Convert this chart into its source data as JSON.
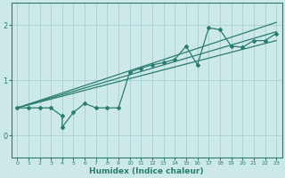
{
  "xlabel": "Humidex (Indice chaleur)",
  "ylabel": "",
  "bg_color": "#cce8e8",
  "line_color": "#2a7d6e",
  "grid_color": "#add4d4",
  "xlim": [
    -0.5,
    23.5
  ],
  "ylim": [
    -0.4,
    2.4
  ],
  "xticks": [
    0,
    1,
    2,
    3,
    4,
    5,
    6,
    7,
    8,
    9,
    10,
    11,
    12,
    13,
    14,
    15,
    16,
    17,
    18,
    19,
    20,
    21,
    22,
    23
  ],
  "yticks": [
    0,
    1,
    2
  ],
  "data_x": [
    0,
    1,
    2,
    3,
    4,
    4,
    5,
    6,
    7,
    8,
    9,
    10,
    11,
    12,
    13,
    14,
    15,
    16,
    17,
    18,
    19,
    20,
    21,
    22,
    23
  ],
  "data_y": [
    0.5,
    0.5,
    0.5,
    0.5,
    0.35,
    0.15,
    0.42,
    0.58,
    0.5,
    0.5,
    0.5,
    1.15,
    1.22,
    1.28,
    1.32,
    1.38,
    1.62,
    1.28,
    1.95,
    1.92,
    1.62,
    1.6,
    1.72,
    1.72,
    1.85
  ],
  "line1_x": [
    0,
    23
  ],
  "line1_y": [
    0.5,
    2.05
  ],
  "line2_x": [
    0,
    23
  ],
  "line2_y": [
    0.5,
    1.72
  ],
  "line3_x": [
    0,
    23
  ],
  "line3_y": [
    0.5,
    1.88
  ]
}
